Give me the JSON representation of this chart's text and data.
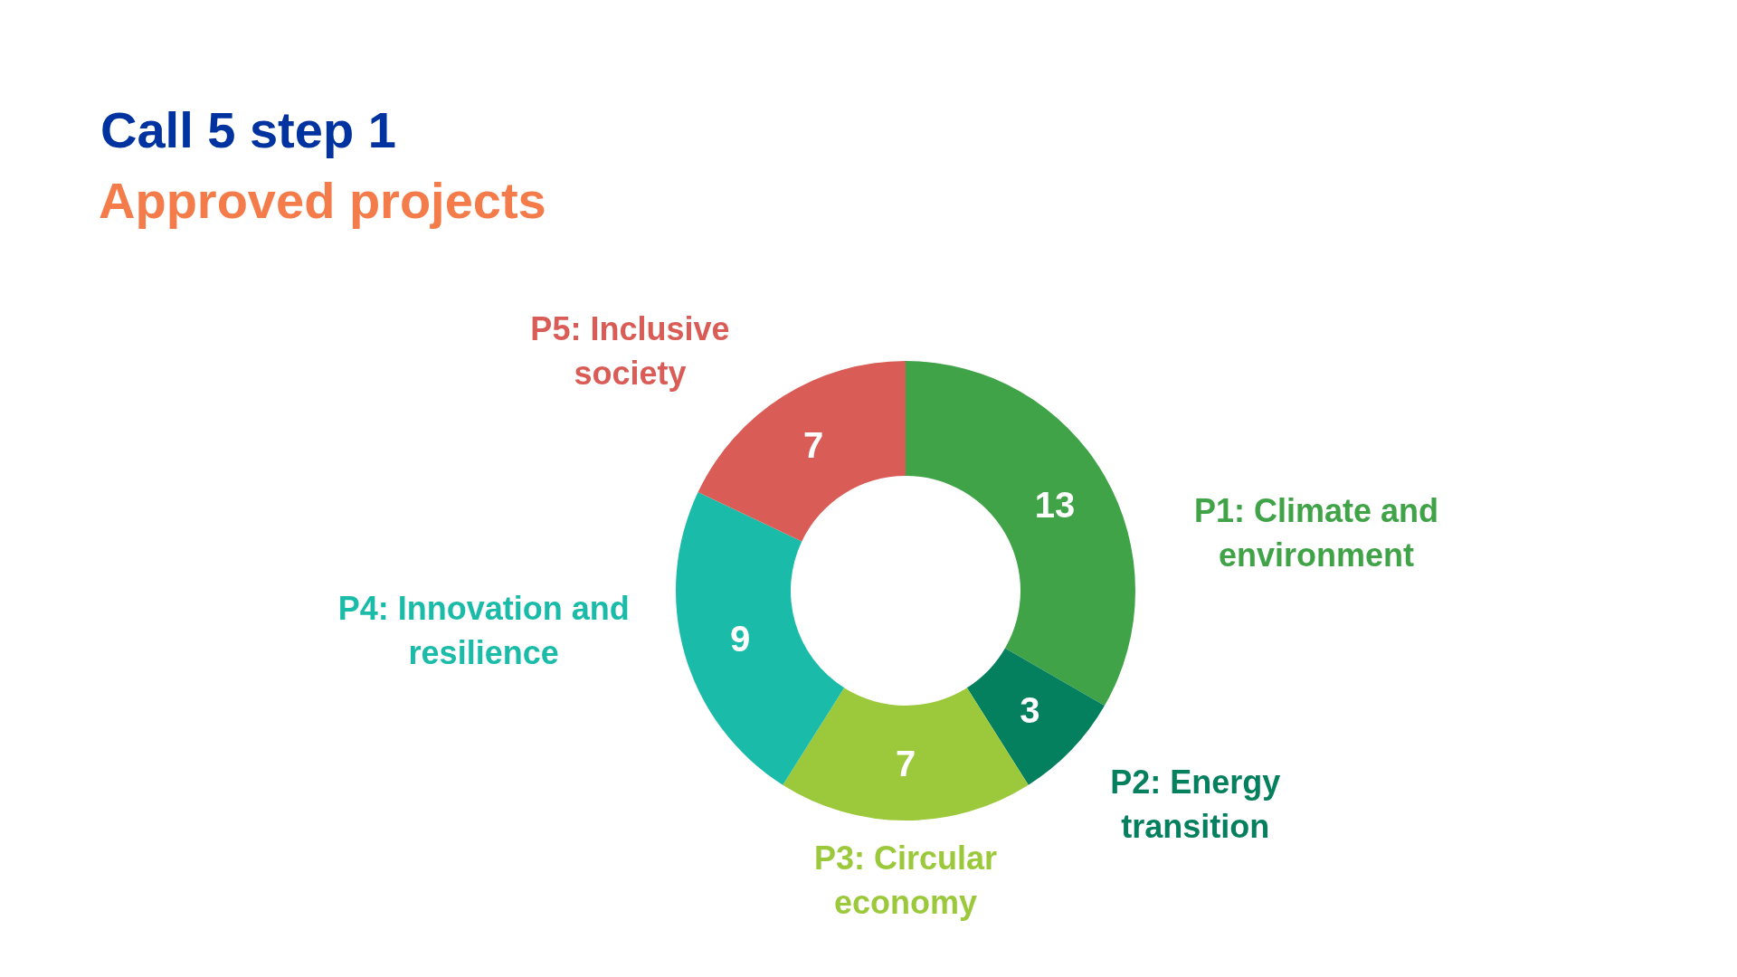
{
  "chart_data": {
    "type": "donut",
    "title": "Call 5 step 1",
    "subtitle": "Approved projects",
    "categories": [
      "P1: Climate and environment",
      "P2: Energy transition",
      "P3: Circular economy",
      "P4: Innovation and resilience",
      "P5: Inclusive society"
    ],
    "values": [
      13,
      3,
      7,
      9,
      7
    ],
    "colors": [
      "#40a348",
      "#05805f",
      "#9bc93b",
      "#1abba8",
      "#da5c56"
    ],
    "data_labels": true
  }
}
